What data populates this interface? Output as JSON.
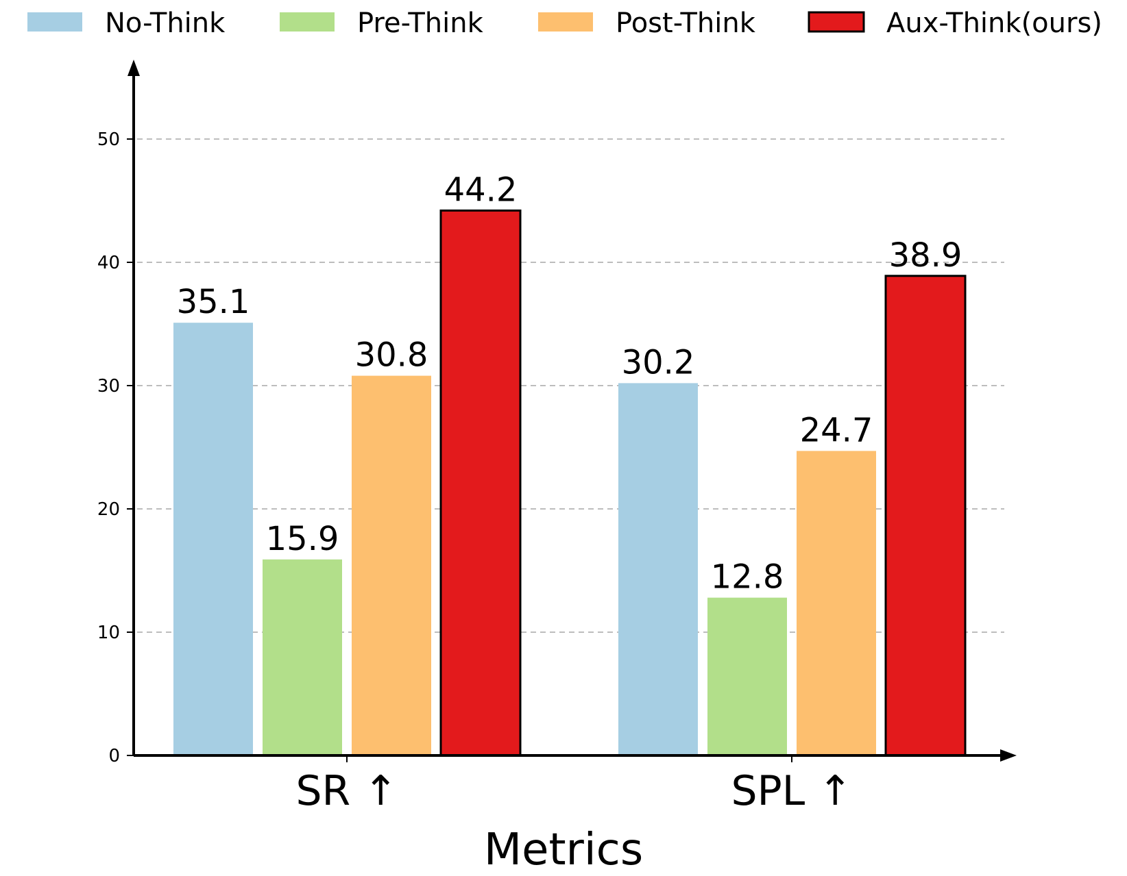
{
  "chart_data": {
    "type": "bar",
    "xlabel": "Metrics",
    "ylabel": "",
    "categories": [
      "SR ↑",
      "SPL ↑"
    ],
    "series": [
      {
        "name": "No-Think",
        "color": "#a6cee3",
        "outline": false,
        "values": [
          35.1,
          30.2
        ]
      },
      {
        "name": "Pre-Think",
        "color": "#b2df8a",
        "outline": false,
        "values": [
          15.9,
          12.8
        ]
      },
      {
        "name": "Post-Think",
        "color": "#fdbf6f",
        "outline": false,
        "values": [
          30.8,
          24.7
        ]
      },
      {
        "name": "Aux-Think(ours)",
        "color": "#e31a1c",
        "outline": true,
        "values": [
          44.2,
          38.9
        ]
      }
    ],
    "value_labels": [
      [
        "35.1",
        "30.2"
      ],
      [
        "15.9",
        "12.8"
      ],
      [
        "30.8",
        "24.7"
      ],
      [
        "44.2",
        "38.9"
      ]
    ],
    "yticks": [
      0,
      10,
      20,
      30,
      40,
      50
    ],
    "ylim": [
      0,
      55
    ],
    "grid": "horizontal dashed",
    "legend_position": "top"
  }
}
